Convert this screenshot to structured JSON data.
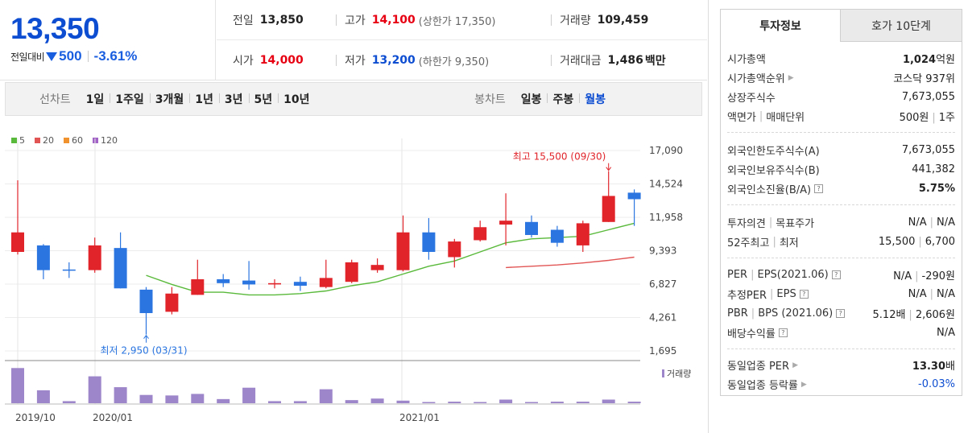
{
  "summary": {
    "price": "13,350",
    "change_label": "전일대비",
    "change_amount": "500",
    "change_pct": "-3.61%",
    "prev_label": "전일",
    "prev_value": "13,850",
    "high_label": "고가",
    "high_value": "14,100",
    "high_sub": "(상한가 17,350)",
    "volume_label": "거래량",
    "volume_value": "109,459",
    "open_label": "시가",
    "open_value": "14,000",
    "low_label": "저가",
    "low_value": "13,200",
    "low_sub": "(하한가 9,350)",
    "amount_label": "거래대금",
    "amount_value": "1,486",
    "amount_unit": "백만"
  },
  "toolbar": {
    "line_title": "선차트",
    "line_periods": [
      "1일",
      "1주일",
      "3개월",
      "1년",
      "3년",
      "5년",
      "10년"
    ],
    "candle_title": "봉차트",
    "candle_periods": [
      "일봉",
      "주봉",
      "월봉"
    ],
    "candle_active": "월봉"
  },
  "colors": {
    "up": "#e0242a",
    "down": "#2a75e0",
    "ma5": "#59b93a",
    "ma20": "#e25555",
    "ma60": "#f0922e",
    "ma120": "#a263c7",
    "volume": "#9d86c9"
  },
  "chart_data": {
    "type": "candlestick",
    "legend": [
      "5",
      "20",
      "60",
      "120"
    ],
    "y_ticks": [
      17090,
      14524,
      11958,
      9393,
      6827,
      4261,
      1695
    ],
    "y_tick_labels": [
      "17,090",
      "14,524",
      "11,958",
      "9,393",
      "6,827",
      "4,261",
      "1,695"
    ],
    "x_labels": [
      "2019/10",
      "2020/01",
      "2021/01"
    ],
    "candles": [
      {
        "o": 9300,
        "c": 10800,
        "h": 14800,
        "l": 9100
      },
      {
        "o": 9800,
        "c": 7900,
        "h": 9900,
        "l": 7200
      },
      {
        "o": 7900,
        "c": 7900,
        "h": 8500,
        "l": 7300
      },
      {
        "o": 7900,
        "c": 9800,
        "h": 10400,
        "l": 7700
      },
      {
        "o": 9600,
        "c": 6500,
        "h": 10800,
        "l": 6500
      },
      {
        "o": 6400,
        "c": 4600,
        "h": 6600,
        "l": 2950
      },
      {
        "o": 4700,
        "c": 6100,
        "h": 6600,
        "l": 4500
      },
      {
        "o": 6000,
        "c": 7200,
        "h": 8700,
        "l": 6000
      },
      {
        "o": 7200,
        "c": 6900,
        "h": 7600,
        "l": 6600
      },
      {
        "o": 7100,
        "c": 6800,
        "h": 8600,
        "l": 6400
      },
      {
        "o": 6800,
        "c": 6900,
        "h": 7200,
        "l": 6500
      },
      {
        "o": 7000,
        "c": 6700,
        "h": 7400,
        "l": 6300
      },
      {
        "o": 6600,
        "c": 7300,
        "h": 8700,
        "l": 6500
      },
      {
        "o": 7000,
        "c": 8500,
        "h": 8700,
        "l": 6900
      },
      {
        "o": 7900,
        "c": 8300,
        "h": 8800,
        "l": 7700
      },
      {
        "o": 7900,
        "c": 10800,
        "h": 12100,
        "l": 7800
      },
      {
        "o": 10800,
        "c": 9300,
        "h": 11900,
        "l": 8700
      },
      {
        "o": 8900,
        "c": 10100,
        "h": 10300,
        "l": 8100
      },
      {
        "o": 10200,
        "c": 11200,
        "h": 11700,
        "l": 10100
      },
      {
        "o": 11400,
        "c": 11700,
        "h": 13800,
        "l": 9800
      },
      {
        "o": 11600,
        "c": 10600,
        "h": 12100,
        "l": 10400
      },
      {
        "o": 11000,
        "c": 10000,
        "h": 11300,
        "l": 9700
      },
      {
        "o": 9800,
        "c": 11500,
        "h": 11700,
        "l": 9300
      },
      {
        "o": 11600,
        "c": 13600,
        "h": 15500,
        "l": 11600
      },
      {
        "o": 13850,
        "c": 13350,
        "h": 14100,
        "l": 11300
      }
    ],
    "ma5": [
      null,
      null,
      null,
      null,
      null,
      7500,
      6800,
      6200,
      6200,
      6000,
      6000,
      6100,
      6300,
      6700,
      7000,
      7600,
      8200,
      8600,
      9300,
      10000,
      10300,
      10400,
      10500,
      11000,
      11500
    ],
    "ma20": [
      null,
      null,
      null,
      null,
      null,
      null,
      null,
      null,
      null,
      null,
      null,
      null,
      null,
      null,
      null,
      null,
      null,
      null,
      null,
      8100,
      8200,
      8300,
      8450,
      8650,
      8900
    ],
    "volume": [
      6.8,
      2.5,
      0.4,
      5.2,
      3.1,
      1.6,
      1.5,
      1.8,
      0.8,
      3.0,
      0.4,
      0.4,
      2.7,
      0.6,
      0.9,
      0.5,
      0.2,
      0.3,
      0.2,
      0.7,
      0.2,
      0.3,
      0.3,
      0.7,
      0.3
    ],
    "high_annotation": "최고 15,500 (09/30)",
    "low_annotation": "최저 2,950 (03/31)",
    "volume_legend": "거래량"
  },
  "panel": {
    "tab_invest": "투자정보",
    "tab_quote": "호가 10단계",
    "market_cap_label": "시가총액",
    "market_cap_value": "1,024",
    "market_cap_unit": "억원",
    "rank_label": "시가총액순위",
    "rank_value": "코스닥 937위",
    "shares_label": "상장주식수",
    "shares_value": "7,673,055",
    "par_label": "액면가",
    "unit_label": "매매단위",
    "par_value": "500원",
    "unit_value": "1주",
    "foreign_limit_label": "외국인한도주식수(A)",
    "foreign_limit_value": "7,673,055",
    "foreign_hold_label": "외국인보유주식수(B)",
    "foreign_hold_value": "441,382",
    "foreign_ratio_label": "외국인소진율(B/A)",
    "foreign_ratio_value": "5.75%",
    "opinion_label": "투자의견",
    "target_label": "목표주가",
    "opinion_value": "N/A",
    "target_value": "N/A",
    "w52_label": "52주최고",
    "w52_low_label": "최저",
    "w52_high": "15,500",
    "w52_low": "6,700",
    "per_label": "PER",
    "eps_label": "EPS(2021.06)",
    "per_value": "N/A",
    "eps_value": "-290원",
    "est_per_label": "추정PER",
    "est_eps_label": "EPS",
    "est_per_value": "N/A",
    "est_eps_value": "N/A",
    "pbr_label": "PBR",
    "bps_label": "BPS (2021.06)",
    "pbr_value": "5.12배",
    "bps_value": "2,606원",
    "div_label": "배당수익률",
    "div_value": "N/A",
    "ind_per_label": "동일업종 PER",
    "ind_per_value": "13.30",
    "ind_per_unit": "배",
    "ind_chg_label": "동일업종 등락률",
    "ind_chg_value": "-0.03%"
  }
}
